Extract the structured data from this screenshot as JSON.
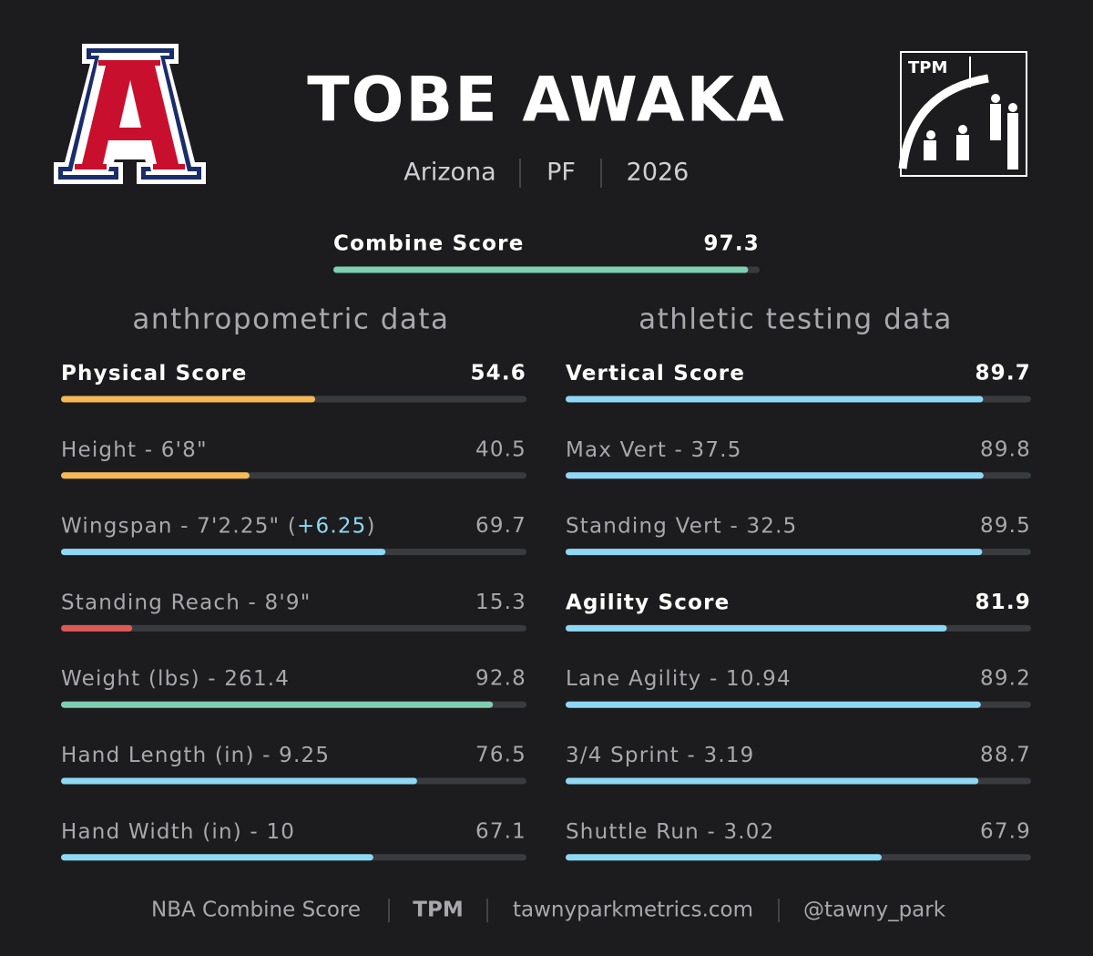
{
  "header": {
    "name": "TOBE AWAKA",
    "school": "Arizona",
    "position": "PF",
    "year": "2026",
    "logo_text": "TPM"
  },
  "combine": {
    "label": "Combine Score",
    "value": 97.3,
    "color": "#7ecfb0"
  },
  "xlim": [
    0,
    100
  ],
  "sections": [
    {
      "title": "anthropometric data",
      "rows": [
        {
          "label": "Physical Score",
          "value": 54.6,
          "color": "#f5b955",
          "bold": true
        },
        {
          "label": "Height - 6'8\"",
          "value": 40.5,
          "color": "#f5b955"
        },
        {
          "label": "Wingspan - 7'2.25\" (",
          "highlight": "+6.25",
          "label_end": ")",
          "value": 69.7,
          "color": "#8fd8f5"
        },
        {
          "label": "Standing Reach - 8'9\"",
          "value": 15.3,
          "color": "#e05a55"
        },
        {
          "label": "Weight (lbs) - 261.4",
          "value": 92.8,
          "color": "#7ecfb0"
        },
        {
          "label": "Hand Length (in) - 9.25",
          "value": 76.5,
          "color": "#8fd8f5"
        },
        {
          "label": "Hand Width (in) - 10",
          "value": 67.1,
          "color": "#8fd8f5"
        }
      ]
    },
    {
      "title": "athletic testing data",
      "rows": [
        {
          "label": "Vertical Score",
          "value": 89.7,
          "color": "#8fd8f5",
          "bold": true
        },
        {
          "label": "Max Vert - 37.5",
          "value": 89.8,
          "color": "#8fd8f5"
        },
        {
          "label": "Standing Vert - 32.5",
          "value": 89.5,
          "color": "#8fd8f5"
        },
        {
          "label": "Agility Score",
          "value": 81.9,
          "color": "#8fd8f5",
          "bold": true
        },
        {
          "label": "Lane Agility - 10.94",
          "value": 89.2,
          "color": "#8fd8f5"
        },
        {
          "label": "3/4 Sprint - 3.19",
          "value": 88.7,
          "color": "#8fd8f5"
        },
        {
          "label": "Shuttle Run - 3.02",
          "value": 67.9,
          "color": "#8fd8f5"
        }
      ]
    }
  ],
  "footer": [
    "NBA Combine Score",
    "TPM",
    "tawnyparkmetrics.com",
    "@tawny_park"
  ]
}
